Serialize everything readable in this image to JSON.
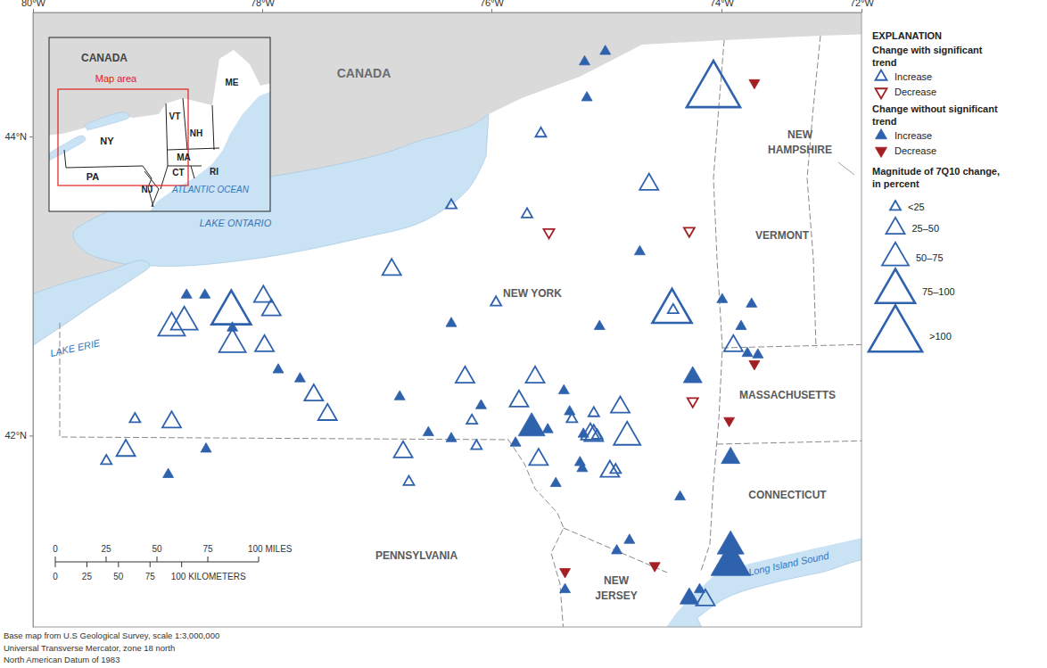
{
  "chart_data": {
    "type": "map",
    "xlim": [
      -80,
      -72
    ],
    "ylim": [
      40.72,
      44.83
    ],
    "xticks": [
      {
        "value": -80,
        "label": "80°W"
      },
      {
        "value": -78,
        "label": "78°W"
      },
      {
        "value": -76,
        "label": "76°W"
      },
      {
        "value": -74,
        "label": "74°W"
      },
      {
        "value": -72,
        "label": "72°W"
      }
    ],
    "yticks": [
      {
        "value": 42,
        "label": "42°N"
      },
      {
        "value": 44,
        "label": "44°N"
      }
    ],
    "legend_title": "EXPLANATION",
    "legend_groups": [
      {
        "title": [
          "Change with significant",
          "trend"
        ],
        "series": [
          {
            "name": "Increase",
            "color": "#2f62ad",
            "marker": "triangle-up-open",
            "x": [
              -75.57,
              -74.07,
              -76.35,
              -75.69,
              -74.63,
              -76.87,
              -75.96,
              -74.42,
              -74.43,
              -73.83,
              -77.99,
              -77.92,
              -78.27,
              -78.26,
              -78.79,
              -78.68,
              -77.98,
              -77.55,
              -77.43,
              -79.11,
              -78.79,
              -79.19,
              -79.36,
              -76.77,
              -76.72,
              -76.23,
              -76.17,
              -76.13,
              -75.76,
              -75.62,
              -75.3,
              -75.11,
              -75.14,
              -75.11,
              -75.08,
              -75.59,
              -74.97,
              -74.92,
              -74.88,
              -74.82,
              -74.14
            ],
            "y": [
              44.02,
              44.3,
              43.54,
              43.48,
              43.68,
              43.11,
              42.89,
              42.84,
              42.83,
              42.6,
              42.93,
              42.84,
              42.82,
              42.61,
              42.72,
              42.76,
              42.6,
              42.27,
              42.14,
              42.11,
              42.09,
              41.9,
              41.83,
              41.89,
              41.69,
              42.39,
              42.1,
              41.93,
              42.23,
              42.39,
              42.11,
              42.15,
              42.01,
              42.0,
              42.0,
              41.84,
              41.76,
              41.77,
              42.19,
              41.99,
              40.9
            ],
            "magnitude": [
              "<25",
              ">100",
              "<25",
              "<25",
              "25–50",
              "25–50",
              "<25",
              "<25",
              "75–100",
              "25–50",
              "25–50",
              "25–50",
              "75–100",
              "50–75",
              "50–75",
              "50–75",
              "25–50",
              "25–50",
              "25–50",
              "<25",
              "25–50",
              "25–50",
              "<25",
              "25–50",
              "<25",
              "25–50",
              "<25",
              "<25",
              "25–50",
              "25–50",
              "<25",
              "<25",
              "25–50",
              "25–50",
              "<25",
              "25–50",
              "25–50",
              "<25",
              "25–50",
              "50–75",
              "25–50"
            ]
          },
          {
            "name": "Decrease",
            "color": "#a31f23",
            "marker": "triangle-down-open",
            "x": [
              -75.5,
              -74.28,
              -74.25
            ],
            "y": [
              43.36,
              43.37,
              42.23
            ],
            "magnitude": [
              "<25",
              "<25",
              "<25"
            ]
          }
        ]
      },
      {
        "title": [
          "Change without significant",
          "trend"
        ],
        "series": [
          {
            "name": "Increase",
            "color": "#2f62ad",
            "marker": "triangle-up",
            "x": [
              -75.19,
              -75.01,
              -75.17,
              -74.71,
              -76.35,
              -75.06,
              -73.99,
              -73.57,
              -73.72,
              -73.63,
              -73.48,
              -78.66,
              -78.5,
              -78.26,
              -77.86,
              -77.67,
              -78.82,
              -78.49,
              -76.8,
              -76.55,
              -76.35,
              -76.09,
              -75.65,
              -75.79,
              -75.51,
              -75.37,
              -75.32,
              -75.2,
              -75.44,
              -75.23,
              -75.21,
              -74.25,
              -73.87,
              -74.36,
              -74.8,
              -74.91,
              -75.36,
              -73.87,
              -73.87,
              -74.28,
              -74.19
            ],
            "y": [
              44.5,
              44.57,
              44.26,
              43.23,
              42.75,
              42.73,
              42.91,
              42.88,
              42.73,
              42.55,
              42.54,
              42.94,
              42.94,
              42.72,
              42.44,
              42.38,
              41.74,
              41.91,
              42.26,
              42.02,
              41.98,
              42.2,
              42.05,
              41.95,
              42.04,
              42.3,
              42.16,
              42.01,
              41.68,
              41.82,
              41.78,
              42.39,
              41.85,
              41.59,
              41.3,
              41.23,
              40.97,
              41.26,
              41.14,
              40.91,
              40.97
            ],
            "magnitude": [
              "<25",
              "<25",
              "<25",
              "<25",
              "<25",
              "<25",
              "<25",
              "<25",
              "<25",
              "<25",
              "<25",
              "<25",
              "<25",
              "<25",
              "<25",
              "<25",
              "<25",
              "<25",
              "<25",
              "<25",
              "<25",
              "<25",
              "50–75",
              "<25",
              "<25",
              "<25",
              "<25",
              "<25",
              "<25",
              "<25",
              "<25",
              "25–50",
              "25–50",
              "<25",
              "<25",
              "<25",
              "<25",
              "50–75",
              "75–100",
              "25–50",
              "<25"
            ]
          },
          {
            "name": "Decrease",
            "color": "#a31f23",
            "marker": "triangle-down",
            "x": [
              -73.53,
              -73.53,
              -73.89,
              -75.36,
              -74.58
            ],
            "y": [
              44.36,
              42.48,
              42.1,
              41.09,
              41.13
            ],
            "magnitude": [
              "<25",
              "<25",
              "<25",
              "<25",
              "<25"
            ]
          }
        ]
      }
    ],
    "size_legend": {
      "title": [
        "Magnitude of 7Q10 change,",
        "in percent"
      ],
      "classes": [
        "<25",
        "25–50",
        "50–75",
        "75–100",
        ">100"
      ]
    },
    "labels": [
      [
        "CANADA"
      ],
      [
        "LAKE ONTARIO"
      ],
      [
        "LAKE ERIE"
      ],
      [
        "NEW YORK"
      ],
      [
        "PENNSYLVANIA"
      ],
      [
        "NEW",
        "JERSEY"
      ],
      [
        "CONNECTICUT"
      ],
      [
        "MASSACHUSETTS"
      ],
      [
        "VERMONT"
      ],
      [
        "NEW",
        "HAMPSHIRE"
      ],
      [
        "Long Island Sound"
      ]
    ],
    "inset_labels": [
      "CANADA",
      "Map area",
      "ME",
      "VT",
      "NH",
      "NY",
      "MA",
      "CT",
      "RI",
      "PA",
      "NJ",
      "ATLANTIC OCEAN"
    ],
    "scale_bar": {
      "miles": [
        0,
        25,
        50,
        75,
        {
          "value": 100,
          "label": "100 MILES"
        }
      ],
      "kilometers": [
        0,
        25,
        50,
        75,
        {
          "value": 100,
          "label": "100 KILOMETERS"
        }
      ]
    },
    "credits": [
      "Base map from U.S Geological Survey, scale 1:3,000,000",
      "Universal Transverse Mercator, zone 18 north",
      "North American Datum of 1983"
    ]
  }
}
